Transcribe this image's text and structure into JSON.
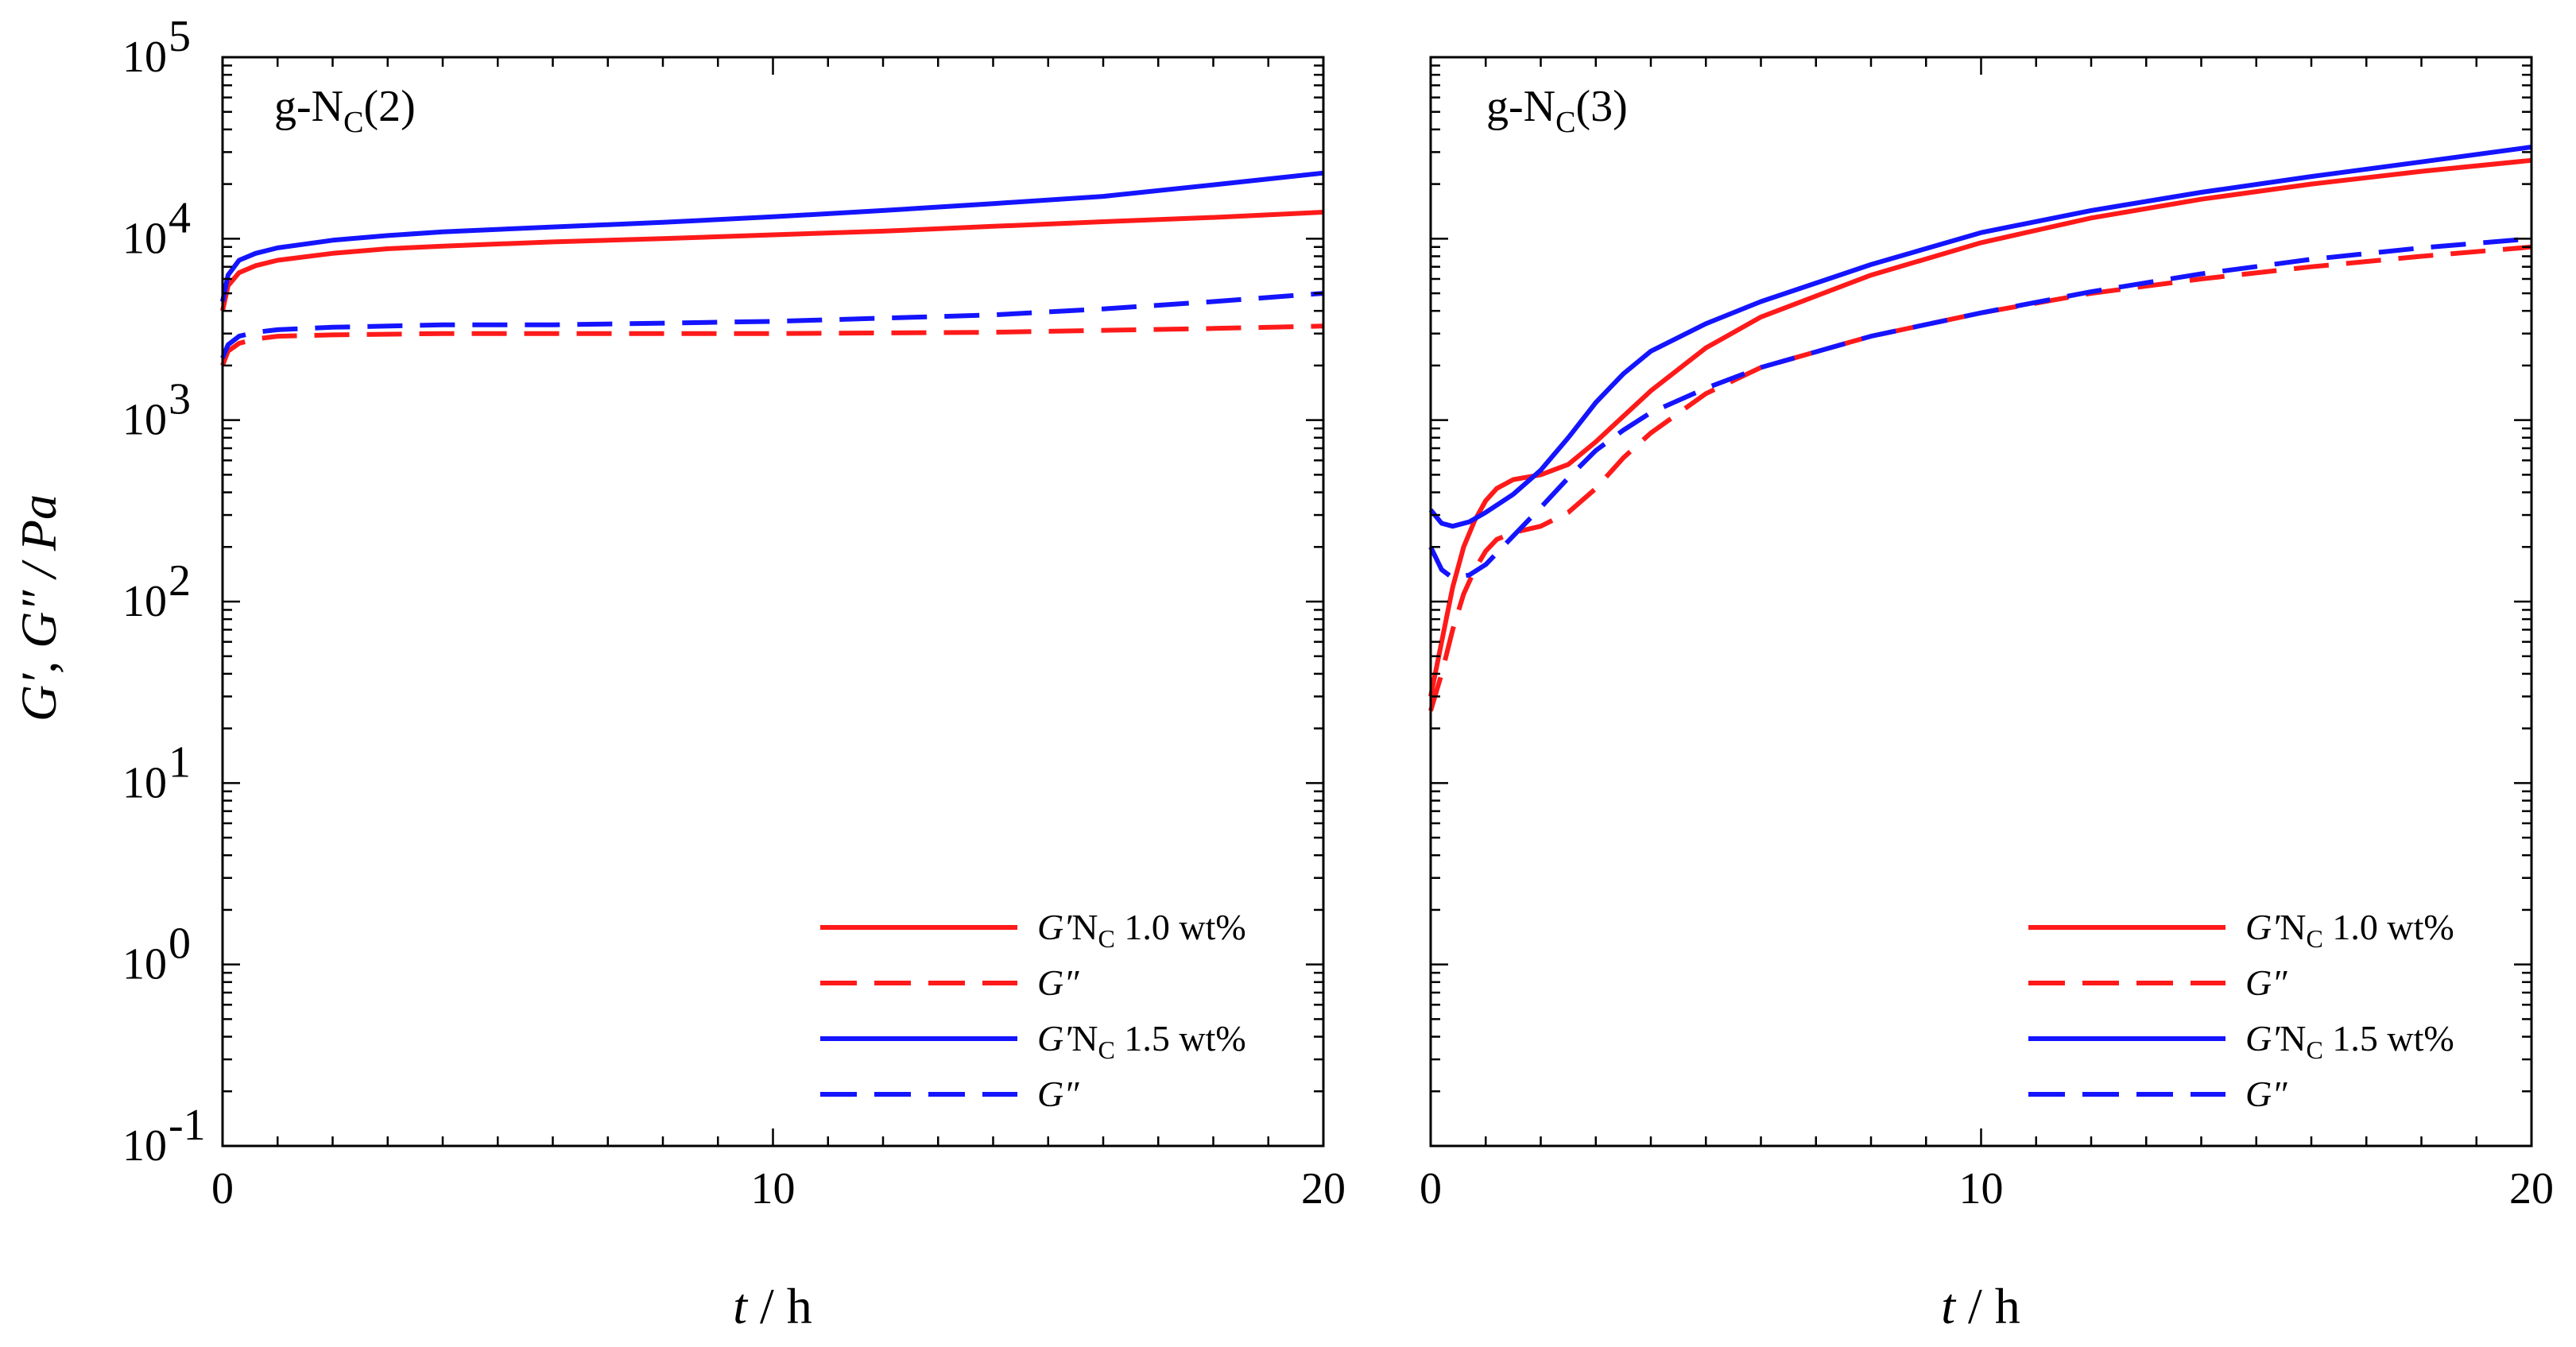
{
  "figure": {
    "ylabel": "G′, G″ / Pa",
    "xlabel_var": "t",
    "xlabel_unit": " / h",
    "colors": {
      "red": "#ff1a1a",
      "blue": "#1414ff"
    }
  },
  "chart_data": [
    {
      "type": "line",
      "panel_label_base": "g-N",
      "panel_label_sub": "C",
      "panel_label_tail": "(2)",
      "yscale": "log",
      "ylim": [
        0.1,
        100000
      ],
      "xlim": [
        0,
        20
      ],
      "x_ticks": [
        0,
        10,
        20
      ],
      "x_tick_labels": [
        "0",
        "10",
        "20"
      ],
      "y_tick_labels": [
        {
          "base": "10",
          "exp": "-1"
        },
        {
          "base": "10",
          "exp": "0"
        },
        {
          "base": "10",
          "exp": "1"
        },
        {
          "base": "10",
          "exp": "2"
        },
        {
          "base": "10",
          "exp": "3"
        },
        {
          "base": "10",
          "exp": "4"
        },
        {
          "base": "10",
          "exp": "5"
        }
      ],
      "legend": [
        {
          "symbol": "G′",
          "text": "N",
          "sub": "C",
          "tail": " 1.0 wt%",
          "color": "#ff1a1a",
          "dash": false
        },
        {
          "symbol": "G″",
          "text": "",
          "sub": "",
          "tail": "",
          "color": "#ff1a1a",
          "dash": true
        },
        {
          "symbol": "G′",
          "text": "N",
          "sub": "C",
          "tail": " 1.5 wt%",
          "color": "#1414ff",
          "dash": false
        },
        {
          "symbol": "G″",
          "text": "",
          "sub": "",
          "tail": "",
          "color": "#1414ff",
          "dash": true
        }
      ],
      "series": [
        {
          "name": "G' Nc 1.0 wt%",
          "color": "#ff1a1a",
          "dash": false,
          "x": [
            0,
            0.1,
            0.3,
            0.6,
            1,
            2,
            3,
            4,
            6,
            8,
            10,
            12,
            14,
            16,
            18,
            20
          ],
          "y": [
            4000,
            5500,
            6500,
            7100,
            7600,
            8300,
            8800,
            9100,
            9600,
            10000,
            10500,
            11000,
            11700,
            12400,
            13100,
            14000
          ]
        },
        {
          "name": "G'' Nc 1.0 wt%",
          "color": "#ff1a1a",
          "dash": true,
          "x": [
            0,
            0.1,
            0.3,
            0.6,
            1,
            2,
            4,
            6,
            10,
            14,
            18,
            20
          ],
          "y": [
            2000,
            2400,
            2650,
            2800,
            2900,
            2950,
            3000,
            3000,
            3000,
            3050,
            3200,
            3300
          ]
        },
        {
          "name": "G' Nc 1.5 wt%",
          "color": "#1414ff",
          "dash": false,
          "x": [
            0,
            0.1,
            0.3,
            0.6,
            1,
            2,
            3,
            4,
            6,
            8,
            10,
            12,
            14,
            16,
            18,
            20
          ],
          "y": [
            4500,
            6300,
            7600,
            8300,
            8900,
            9800,
            10400,
            10900,
            11600,
            12300,
            13200,
            14300,
            15600,
            17100,
            19800,
            23000
          ]
        },
        {
          "name": "G'' Nc 1.5 wt%",
          "color": "#1414ff",
          "dash": true,
          "x": [
            0,
            0.1,
            0.3,
            0.6,
            1,
            2,
            4,
            6,
            10,
            14,
            16,
            18,
            20
          ],
          "y": [
            2200,
            2600,
            2900,
            3050,
            3150,
            3250,
            3350,
            3350,
            3500,
            3800,
            4100,
            4500,
            5000
          ]
        }
      ]
    },
    {
      "type": "line",
      "panel_label_base": "g-N",
      "panel_label_sub": "C",
      "panel_label_tail": "(3)",
      "yscale": "log",
      "ylim": [
        0.1,
        100000
      ],
      "xlim": [
        0,
        20
      ],
      "x_ticks": [
        0,
        10,
        20
      ],
      "x_tick_labels": [
        "0",
        "10",
        "20"
      ],
      "legend": [
        {
          "symbol": "G′",
          "text": "N",
          "sub": "C",
          "tail": " 1.0 wt%",
          "color": "#ff1a1a",
          "dash": false
        },
        {
          "symbol": "G″",
          "text": "",
          "sub": "",
          "tail": "",
          "color": "#ff1a1a",
          "dash": true
        },
        {
          "symbol": "G′",
          "text": "N",
          "sub": "C",
          "tail": " 1.5 wt%",
          "color": "#1414ff",
          "dash": false
        },
        {
          "symbol": "G″",
          "text": "",
          "sub": "",
          "tail": "",
          "color": "#1414ff",
          "dash": true
        }
      ],
      "series": [
        {
          "name": "G' Nc 1.0 wt%",
          "color": "#ff1a1a",
          "dash": false,
          "x": [
            0,
            0.2,
            0.4,
            0.6,
            0.8,
            1.0,
            1.2,
            1.5,
            2,
            2.5,
            3,
            3.5,
            4,
            5,
            6,
            8,
            10,
            12,
            14,
            16,
            18,
            20
          ],
          "y": [
            30,
            60,
            120,
            200,
            280,
            360,
            420,
            470,
            500,
            570,
            760,
            1050,
            1450,
            2500,
            3700,
            6300,
            9500,
            13000,
            16500,
            20000,
            23500,
            27000
          ]
        },
        {
          "name": "G'' Nc 1.0 wt%",
          "color": "#ff1a1a",
          "dash": true,
          "x": [
            0,
            0.2,
            0.4,
            0.6,
            0.8,
            1.0,
            1.2,
            1.5,
            2,
            2.5,
            3,
            3.5,
            4,
            5,
            6,
            8,
            10,
            12,
            14,
            16,
            18,
            20
          ],
          "y": [
            25,
            40,
            70,
            110,
            150,
            190,
            220,
            240,
            260,
            310,
            420,
            620,
            850,
            1400,
            1950,
            2900,
            3900,
            5000,
            6000,
            7000,
            8000,
            9000
          ]
        },
        {
          "name": "G' Nc 1.5 wt%",
          "color": "#1414ff",
          "dash": false,
          "x": [
            0,
            0.2,
            0.4,
            0.7,
            1.0,
            1.5,
            2,
            2.5,
            3,
            3.5,
            4,
            5,
            6,
            8,
            10,
            12,
            14,
            16,
            18,
            20
          ],
          "y": [
            320,
            270,
            260,
            275,
            310,
            390,
            530,
            800,
            1250,
            1800,
            2400,
            3400,
            4500,
            7200,
            10800,
            14300,
            18000,
            22000,
            26500,
            32000
          ]
        },
        {
          "name": "G'' Nc 1.5 wt%",
          "color": "#1414ff",
          "dash": true,
          "x": [
            0,
            0.2,
            0.4,
            0.7,
            1.0,
            1.5,
            2,
            2.5,
            3,
            3.5,
            4,
            5,
            6,
            8,
            10,
            12,
            14,
            16,
            18,
            20
          ],
          "y": [
            200,
            150,
            135,
            140,
            160,
            230,
            330,
            480,
            680,
            880,
            1100,
            1500,
            1950,
            2900,
            3900,
            5100,
            6400,
            7700,
            8900,
            10000
          ]
        }
      ]
    }
  ]
}
